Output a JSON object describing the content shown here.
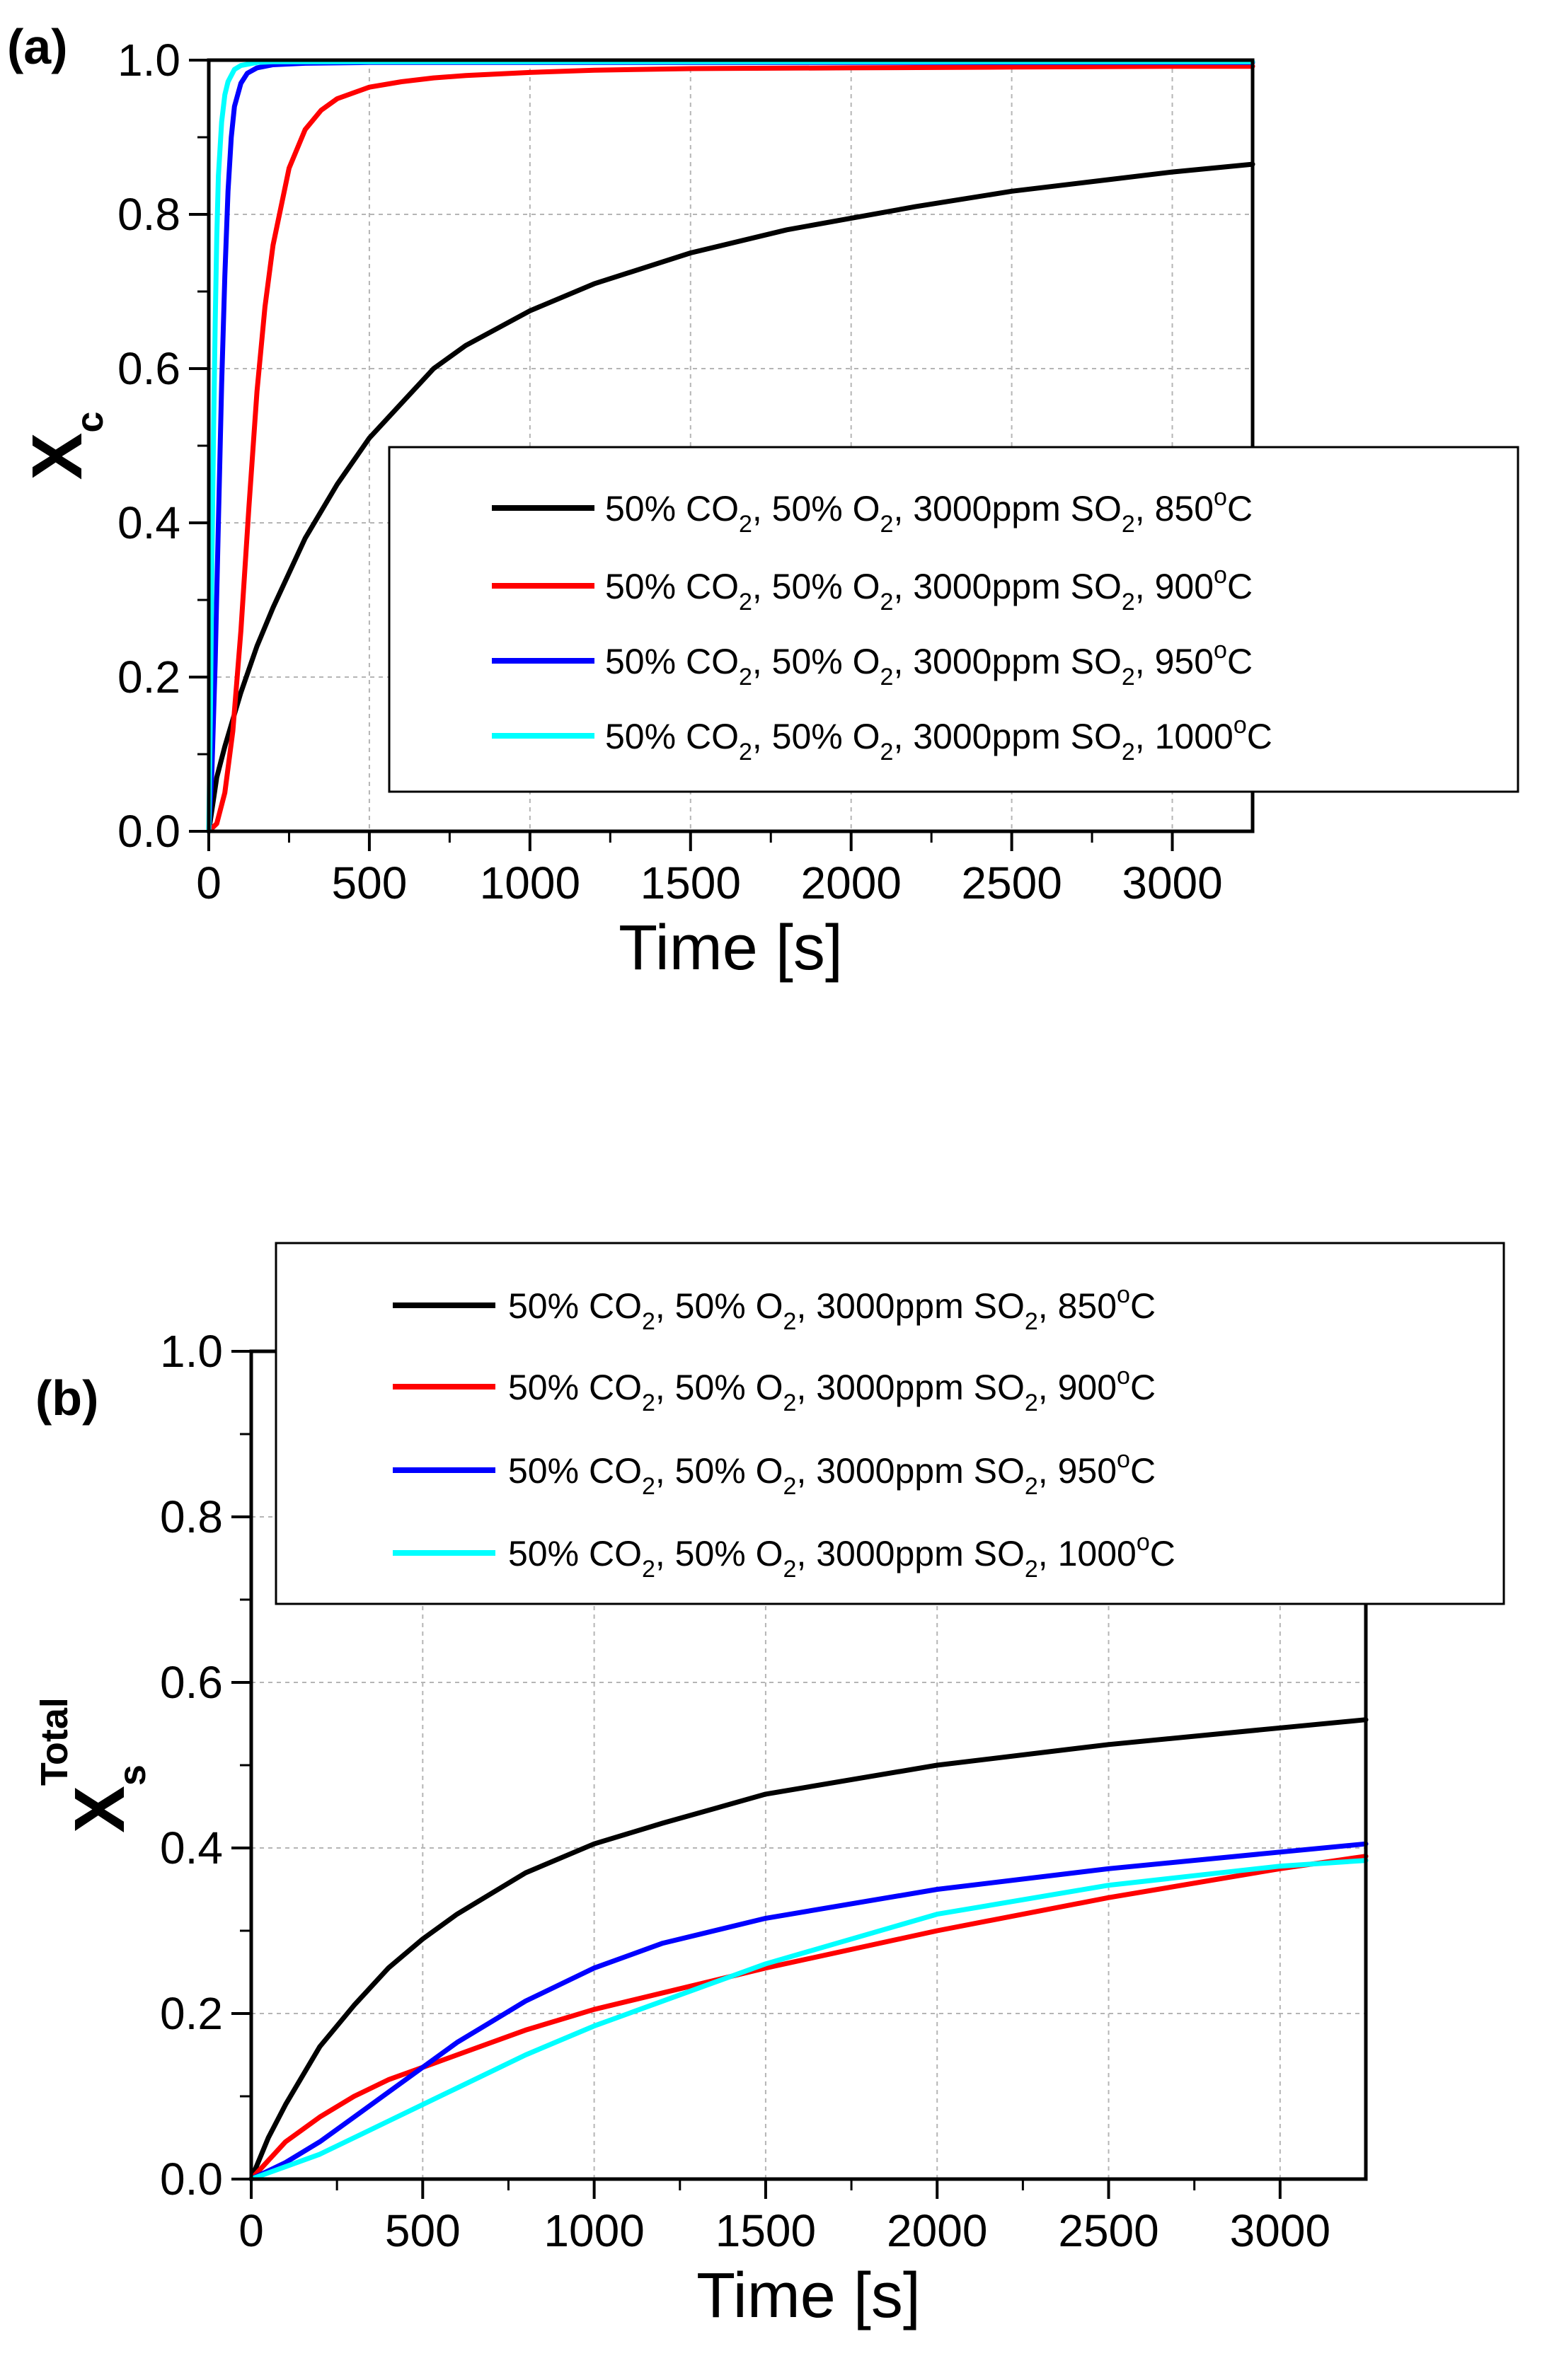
{
  "chart_data": [
    {
      "type": "line",
      "panel_label": "(a)",
      "xlabel": "Time [s]",
      "ylabel": {
        "main": "X",
        "sub": "c",
        "sup": ""
      },
      "xlim": [
        0,
        3250
      ],
      "ylim": [
        0,
        1.0
      ],
      "xticks": [
        0,
        500,
        1000,
        1500,
        2000,
        2500,
        3000
      ],
      "xtick_labels": [
        "0",
        "500",
        "1000",
        "1500",
        "2000",
        "2500",
        "3000"
      ],
      "yticks": [
        0,
        0.2,
        0.4,
        0.6,
        0.8,
        1.0
      ],
      "ytick_labels": [
        "0.0",
        "0.2",
        "0.4",
        "0.6",
        "0.8",
        "1.0"
      ],
      "grid": true,
      "legend_position": "center-right",
      "series": [
        {
          "name": "50% CO2, 50% O2, 3000ppm SO2, 850°C",
          "color": "#000000",
          "x": [
            0,
            25,
            50,
            100,
            150,
            200,
            300,
            400,
            500,
            600,
            700,
            800,
            1000,
            1200,
            1500,
            1800,
            2000,
            2200,
            2500,
            2800,
            3000,
            3250
          ],
          "y": [
            0.0,
            0.07,
            0.11,
            0.18,
            0.24,
            0.29,
            0.38,
            0.45,
            0.51,
            0.555,
            0.6,
            0.63,
            0.675,
            0.71,
            0.75,
            0.78,
            0.795,
            0.81,
            0.83,
            0.845,
            0.855,
            0.865
          ]
        },
        {
          "name": "50% CO2, 50% O2, 3000ppm SO2, 900°C",
          "color": "#ff0000",
          "x": [
            0,
            25,
            50,
            75,
            100,
            125,
            150,
            175,
            200,
            250,
            300,
            350,
            400,
            500,
            600,
            700,
            800,
            1000,
            1200,
            1500,
            2000,
            2500,
            3000,
            3250
          ],
          "y": [
            0.0,
            0.01,
            0.05,
            0.13,
            0.26,
            0.42,
            0.57,
            0.68,
            0.76,
            0.86,
            0.91,
            0.935,
            0.95,
            0.965,
            0.972,
            0.977,
            0.98,
            0.984,
            0.987,
            0.989,
            0.99,
            0.991,
            0.992,
            0.992
          ]
        },
        {
          "name": "50% CO2, 50% O2, 3000ppm SO2, 950°C",
          "color": "#0000ff",
          "x": [
            0,
            10,
            20,
            30,
            40,
            50,
            60,
            70,
            80,
            100,
            120,
            150,
            200,
            300,
            500,
            1000,
            2000,
            3250
          ],
          "y": [
            0.0,
            0.08,
            0.22,
            0.4,
            0.58,
            0.72,
            0.83,
            0.9,
            0.94,
            0.97,
            0.983,
            0.99,
            0.994,
            0.996,
            0.997,
            0.997,
            0.997,
            0.997
          ]
        },
        {
          "name": "50% CO2, 50% O2, 3000ppm SO2, 1000°C",
          "color": "#00ffff",
          "x": [
            0,
            5,
            10,
            15,
            20,
            25,
            30,
            40,
            50,
            60,
            80,
            100,
            150,
            200,
            500,
            1000,
            3250
          ],
          "y": [
            0.0,
            0.15,
            0.35,
            0.52,
            0.66,
            0.77,
            0.85,
            0.92,
            0.955,
            0.972,
            0.988,
            0.993,
            0.997,
            0.998,
            0.998,
            0.998,
            0.998
          ]
        }
      ]
    },
    {
      "type": "line",
      "panel_label": "(b)",
      "xlabel": "Time [s]",
      "ylabel": {
        "main": "X",
        "sub": "s",
        "sup": "Total"
      },
      "xlim": [
        0,
        3250
      ],
      "ylim": [
        0,
        1.0
      ],
      "xticks": [
        0,
        500,
        1000,
        1500,
        2000,
        2500,
        3000
      ],
      "xtick_labels": [
        "0",
        "500",
        "1000",
        "1500",
        "2000",
        "2500",
        "3000"
      ],
      "yticks": [
        0,
        0.2,
        0.4,
        0.6,
        0.8,
        1.0
      ],
      "ytick_labels": [
        "0.0",
        "0.2",
        "0.4",
        "0.6",
        "0.8",
        "1.0"
      ],
      "grid": true,
      "legend_position": "top (above plot)",
      "series": [
        {
          "name": "50% CO2, 50% O2, 3000ppm SO2, 850°C",
          "color": "#000000",
          "x": [
            0,
            50,
            100,
            200,
            300,
            400,
            500,
            600,
            800,
            1000,
            1200,
            1500,
            2000,
            2500,
            3000,
            3250
          ],
          "y": [
            0.0,
            0.05,
            0.09,
            0.16,
            0.21,
            0.255,
            0.29,
            0.32,
            0.37,
            0.405,
            0.43,
            0.465,
            0.5,
            0.525,
            0.545,
            0.555
          ]
        },
        {
          "name": "50% CO2, 50% O2, 3000ppm SO2, 900°C",
          "color": "#ff0000",
          "x": [
            0,
            100,
            200,
            300,
            400,
            500,
            600,
            800,
            1000,
            1200,
            1500,
            2000,
            2500,
            3000,
            3250
          ],
          "y": [
            0.0,
            0.045,
            0.075,
            0.1,
            0.12,
            0.135,
            0.15,
            0.18,
            0.205,
            0.225,
            0.255,
            0.3,
            0.34,
            0.375,
            0.39
          ]
        },
        {
          "name": "50% CO2, 50% O2, 3000ppm SO2, 950°C",
          "color": "#0000ff",
          "x": [
            0,
            100,
            200,
            300,
            400,
            500,
            600,
            700,
            800,
            1000,
            1200,
            1500,
            2000,
            2500,
            3000,
            3250
          ],
          "y": [
            0.0,
            0.02,
            0.045,
            0.075,
            0.105,
            0.135,
            0.165,
            0.19,
            0.215,
            0.255,
            0.285,
            0.315,
            0.35,
            0.375,
            0.395,
            0.405
          ]
        },
        {
          "name": "50% CO2, 50% O2, 3000ppm SO2, 1000°C",
          "color": "#00ffff",
          "x": [
            0,
            100,
            200,
            300,
            400,
            500,
            600,
            800,
            1000,
            1200,
            1500,
            2000,
            2500,
            3000,
            3250
          ],
          "y": [
            0.0,
            0.015,
            0.03,
            0.05,
            0.07,
            0.09,
            0.11,
            0.15,
            0.185,
            0.215,
            0.26,
            0.32,
            0.355,
            0.378,
            0.385
          ]
        }
      ]
    }
  ],
  "legend_entries": [
    {
      "parts": [
        "50% CO",
        "2",
        ", 50% O",
        "2",
        ", 3000ppm SO",
        "2",
        ", 850",
        "o",
        "C"
      ],
      "color": "#000000"
    },
    {
      "parts": [
        "50% CO",
        "2",
        ", 50% O",
        "2",
        ", 3000ppm SO",
        "2",
        ", 900",
        "o",
        "C"
      ],
      "color": "#ff0000"
    },
    {
      "parts": [
        "50% CO",
        "2",
        ", 50% O",
        "2",
        ", 3000ppm SO",
        "2",
        ", 950",
        "o",
        "C"
      ],
      "color": "#0000ff"
    },
    {
      "parts": [
        "50% CO",
        "2",
        ", 50% O",
        "2",
        ", 3000ppm SO",
        "2",
        ", 1000",
        "o",
        "C"
      ],
      "color": "#00ffff"
    }
  ]
}
